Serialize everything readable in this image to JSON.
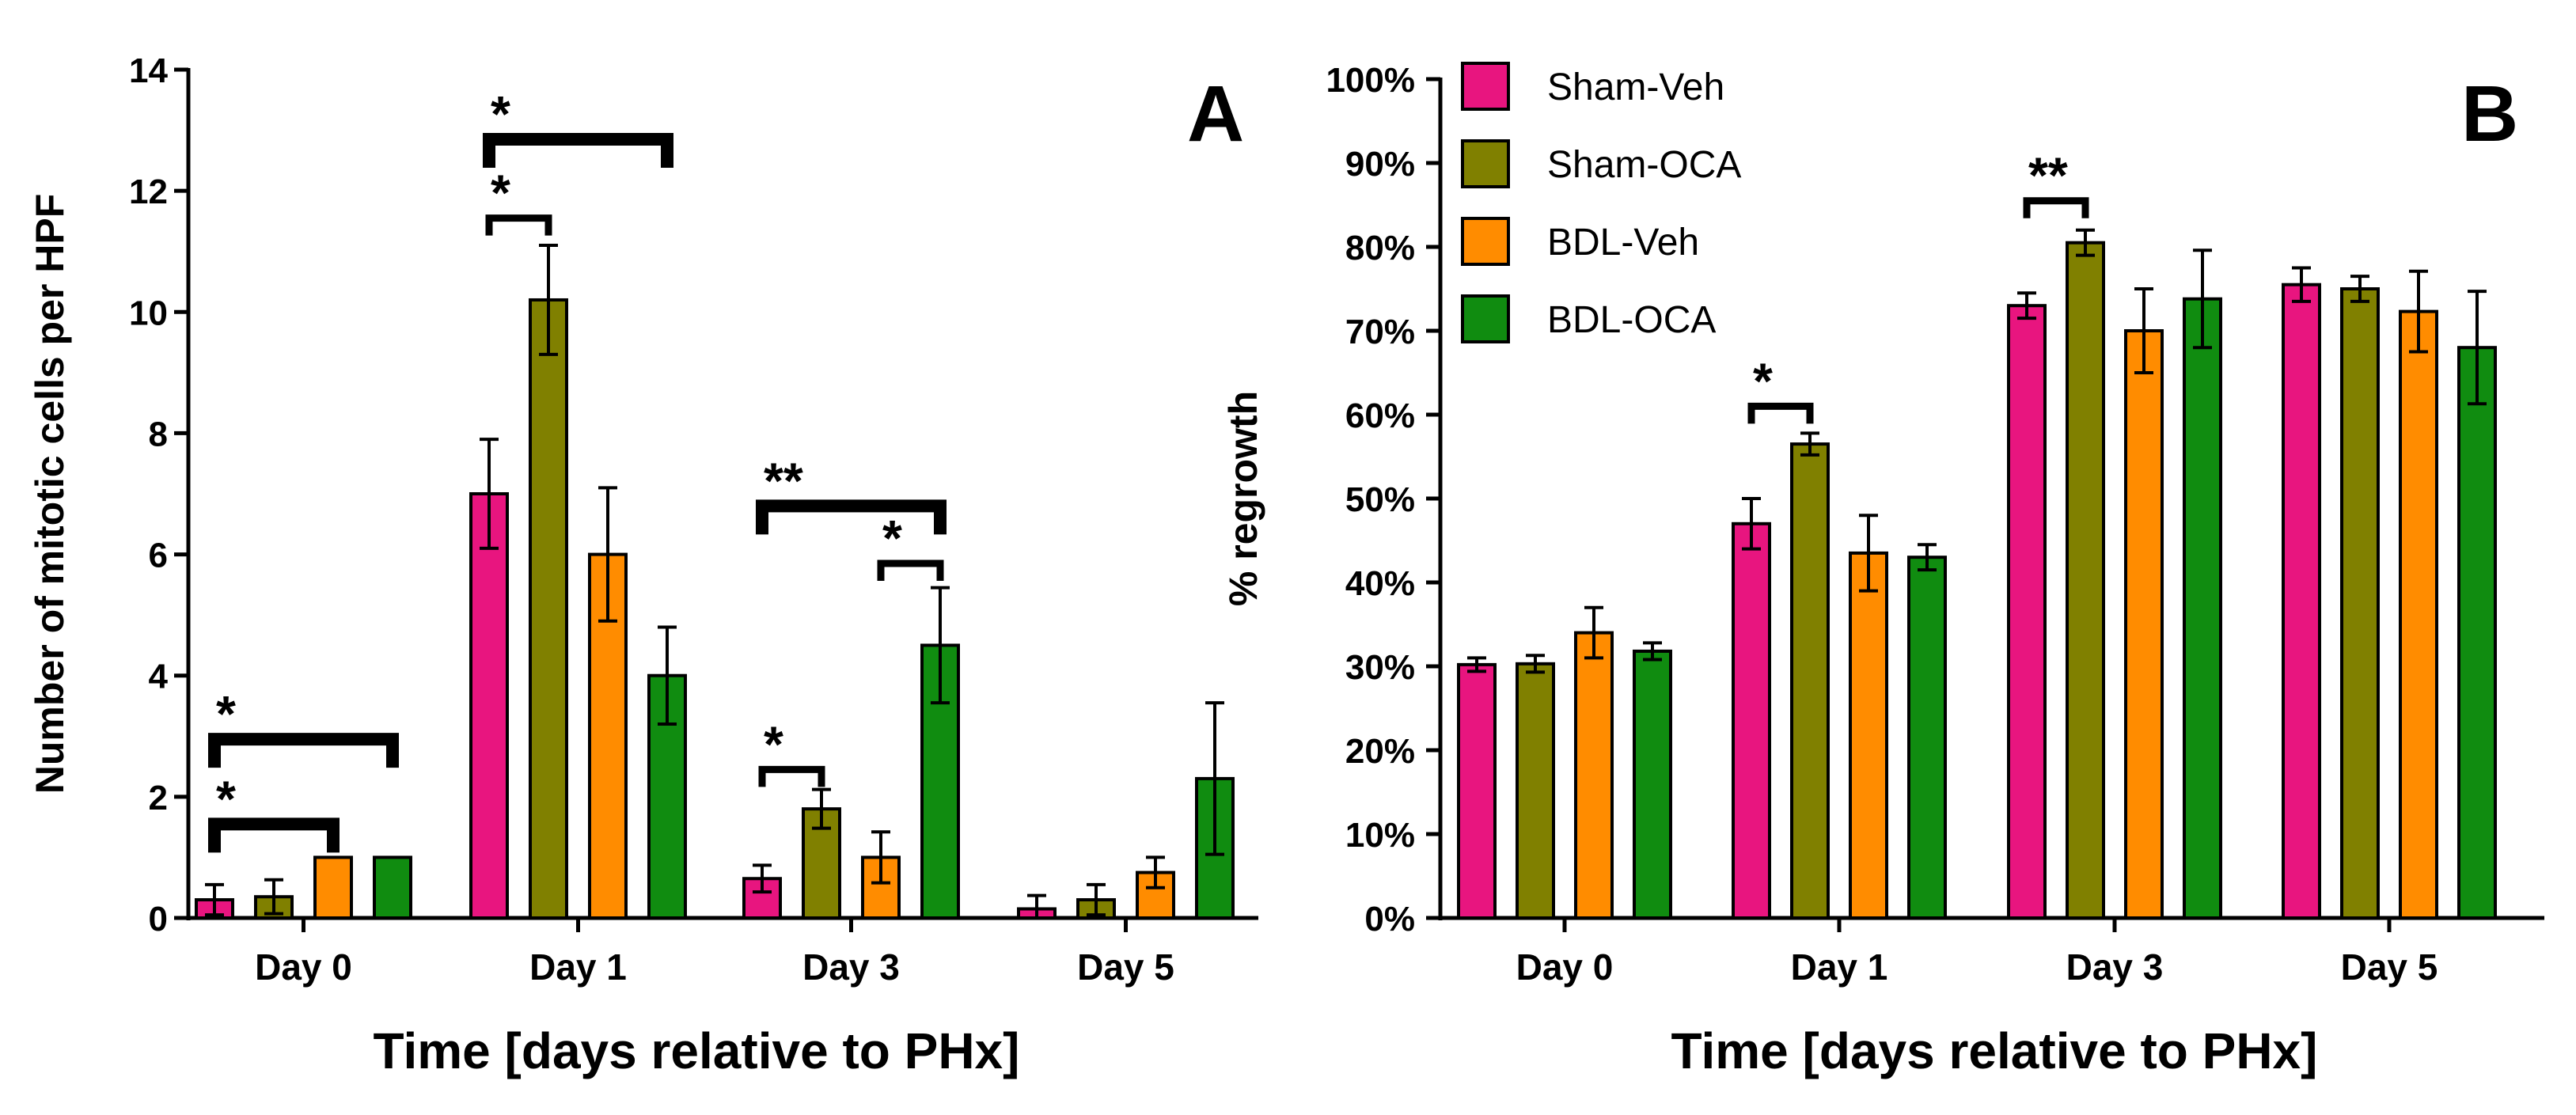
{
  "chart_data": [
    {
      "type": "bar",
      "panel_label": "A",
      "ylabel": "Number of mitotic cells per HPF",
      "xlabel": "Time [days relative to PHx]",
      "ylim": [
        0,
        14
      ],
      "yticks": [
        "0",
        "2",
        "4",
        "6",
        "8",
        "10",
        "12",
        "14"
      ],
      "categories": [
        "Day 0",
        "Day 1",
        "Day 3",
        "Day 5"
      ],
      "series": [
        {
          "name": "Sham-Veh",
          "color": "#e8157f",
          "values": [
            0.3,
            7.0,
            0.65,
            0.15
          ],
          "errors": [
            0.25,
            0.9,
            0.22,
            0.22
          ]
        },
        {
          "name": "Sham-OCA",
          "color": "#808000",
          "values": [
            0.35,
            10.2,
            1.8,
            0.3
          ],
          "errors": [
            0.28,
            0.9,
            0.32,
            0.25
          ]
        },
        {
          "name": "BDL-Veh",
          "color": "#ff8c00",
          "values": [
            1.0,
            6.0,
            1.0,
            0.75
          ],
          "errors": [
            0.0,
            1.1,
            0.42,
            0.25
          ]
        },
        {
          "name": "BDL-OCA",
          "color": "#108c10",
          "values": [
            1.0,
            4.0,
            4.5,
            2.3
          ],
          "errors": [
            0.0,
            0.8,
            0.95,
            1.25
          ]
        }
      ],
      "significance": [
        {
          "group": 0,
          "from": 0,
          "to": 3,
          "y": 2.95,
          "label": "*"
        },
        {
          "group": 0,
          "from": 0,
          "to": 2,
          "y": 1.55,
          "label": "*"
        },
        {
          "group": 1,
          "from": 0,
          "to": 3,
          "y": 12.85,
          "label": "*"
        },
        {
          "group": 1,
          "from": 0,
          "to": 1,
          "y": 11.55,
          "label": "*"
        },
        {
          "group": 2,
          "from": 0,
          "to": 3,
          "y": 6.8,
          "label": "**"
        },
        {
          "group": 2,
          "from": 2,
          "to": 3,
          "y": 5.85,
          "label": "*"
        },
        {
          "group": 2,
          "from": 0,
          "to": 1,
          "y": 2.45,
          "label": "*"
        }
      ]
    },
    {
      "type": "bar",
      "panel_label": "B",
      "ylabel": "% regrowth",
      "xlabel": "Time [days relative to PHx]",
      "ylim": [
        0,
        100
      ],
      "yticks": [
        "0%",
        "10%",
        "20%",
        "30%",
        "40%",
        "50%",
        "60%",
        "70%",
        "80%",
        "90%",
        "100%"
      ],
      "categories": [
        "Day 0",
        "Day 1",
        "Day 3",
        "Day 5"
      ],
      "series": [
        {
          "name": "Sham-Veh",
          "color": "#e8157f",
          "values": [
            30.2,
            47.0,
            73.0,
            75.5
          ],
          "errors": [
            0.8,
            3.0,
            1.5,
            2.0
          ]
        },
        {
          "name": "Sham-OCA",
          "color": "#808000",
          "values": [
            30.3,
            56.5,
            80.5,
            75.0
          ],
          "errors": [
            1.0,
            1.3,
            1.5,
            1.5
          ]
        },
        {
          "name": "BDL-Veh",
          "color": "#ff8c00",
          "values": [
            34.0,
            43.5,
            70.0,
            72.3
          ],
          "errors": [
            3.0,
            4.5,
            5.0,
            4.8
          ]
        },
        {
          "name": "BDL-OCA",
          "color": "#108c10",
          "values": [
            31.8,
            43.0,
            73.8,
            68.0
          ],
          "errors": [
            1.0,
            1.5,
            5.8,
            6.7
          ]
        }
      ],
      "significance": [
        {
          "group": 1,
          "from": 0,
          "to": 1,
          "y": 61.0,
          "label": "*"
        },
        {
          "group": 2,
          "from": 0,
          "to": 1,
          "y": 85.5,
          "label": "**"
        }
      ],
      "legend": [
        "Sham-Veh",
        "Sham-OCA",
        "BDL-Veh",
        "BDL-OCA"
      ]
    }
  ]
}
